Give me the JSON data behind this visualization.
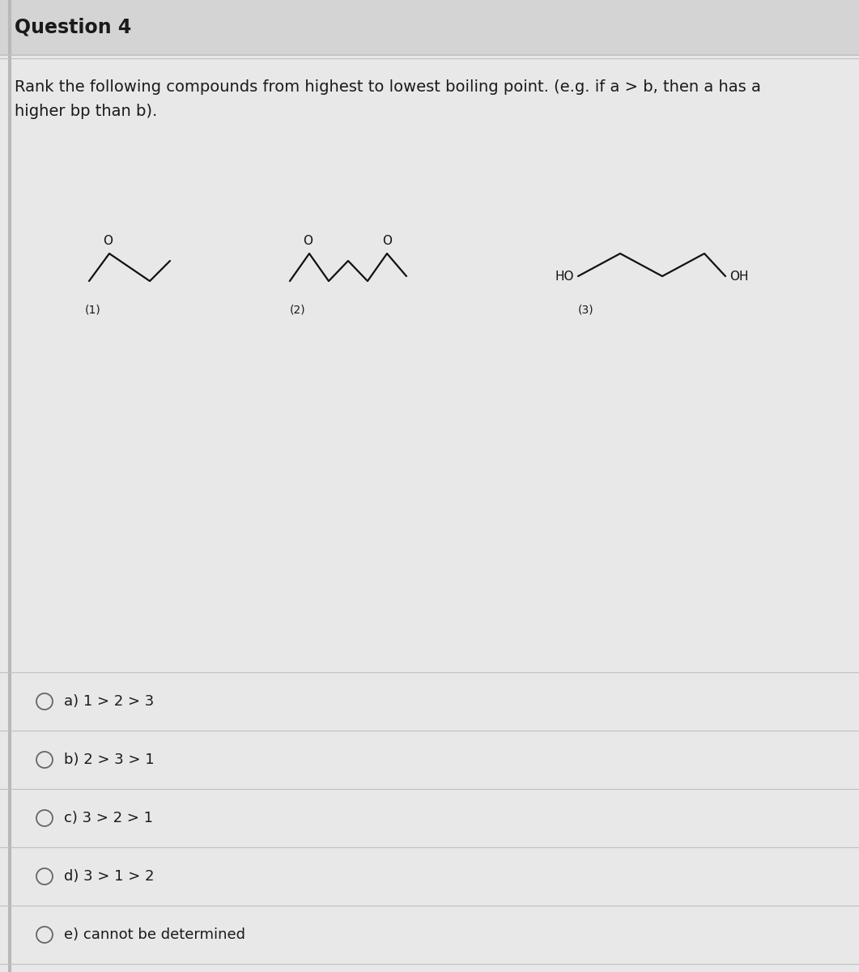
{
  "title": "Question 4",
  "question_line1": "Rank the following compounds from highest to lowest boiling point. (e.g. if a > b, then a has a",
  "question_line2": "higher bp than b).",
  "bg_outer": "#d0d0d0",
  "bg_title": "#d4d4d4",
  "bg_content": "#e8e8e8",
  "divider_color": "#c0c0c0",
  "text_color": "#1a1a1a",
  "options": [
    "a) 1 > 2 > 3",
    "b) 2 > 3 > 1",
    "c) 3 > 2 > 1",
    "d) 3 > 1 > 2",
    "e) cannot be determined"
  ],
  "compound_labels": [
    "(1)",
    "(2)",
    "(3)"
  ],
  "struct_color": "#111111",
  "title_fontsize": 17,
  "question_fontsize": 14,
  "option_fontsize": 13,
  "label_fontsize": 10,
  "struct_fontsize": 11,
  "lw_struct": 1.6
}
